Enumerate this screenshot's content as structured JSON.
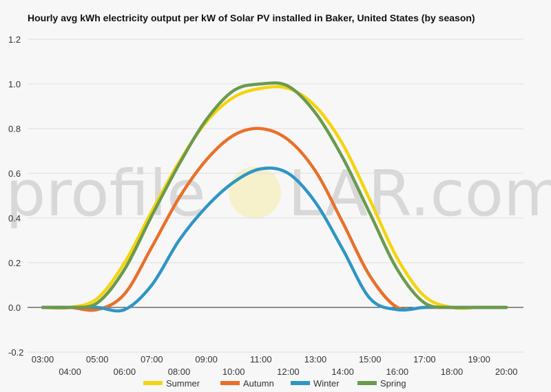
{
  "chart_data": {
    "type": "line",
    "title": "Hourly avg kWh electricity output per kW of Solar PV installed in Baker, United States (by season)",
    "xlabel": "",
    "ylabel": "",
    "ylim": [
      -0.2,
      1.2
    ],
    "yticks": [
      "1.2",
      "1.0",
      "0.8",
      "0.6",
      "0.4",
      "0.2",
      "0.0",
      "-0.2"
    ],
    "ytick_values": [
      1.2,
      1.0,
      0.8,
      0.6,
      0.4,
      0.2,
      0.0,
      -0.2
    ],
    "x": [
      "03:00",
      "04:00",
      "05:00",
      "06:00",
      "07:00",
      "08:00",
      "09:00",
      "10:00",
      "11:00",
      "12:00",
      "13:00",
      "14:00",
      "15:00",
      "16:00",
      "17:00",
      "18:00",
      "19:00",
      "20:00"
    ],
    "grid": true,
    "legend_position": "bottom",
    "series": [
      {
        "name": "Summer",
        "color": "#f5d40f",
        "values": [
          0.0,
          0.0,
          0.04,
          0.2,
          0.43,
          0.65,
          0.83,
          0.94,
          0.98,
          0.98,
          0.9,
          0.73,
          0.48,
          0.22,
          0.05,
          0.0,
          0.0,
          0.0
        ]
      },
      {
        "name": "Autumn",
        "color": "#e8702a",
        "values": [
          0.0,
          0.0,
          -0.01,
          0.06,
          0.27,
          0.49,
          0.66,
          0.77,
          0.8,
          0.75,
          0.61,
          0.38,
          0.14,
          0.0,
          0.0,
          0.0,
          0.0,
          0.0
        ]
      },
      {
        "name": "Winter",
        "color": "#2e96c4",
        "values": [
          0.0,
          0.0,
          0.0,
          -0.01,
          0.1,
          0.3,
          0.45,
          0.56,
          0.62,
          0.6,
          0.47,
          0.26,
          0.04,
          -0.01,
          0.0,
          0.0,
          0.0,
          0.0
        ]
      },
      {
        "name": "Spring",
        "color": "#6a9a4f",
        "values": [
          0.0,
          0.0,
          0.02,
          0.17,
          0.41,
          0.64,
          0.84,
          0.97,
          1.0,
          0.99,
          0.87,
          0.67,
          0.42,
          0.17,
          0.02,
          0.0,
          0.0,
          0.0
        ]
      }
    ]
  },
  "watermark": {
    "left": "profile",
    "right": "LAR.com"
  }
}
